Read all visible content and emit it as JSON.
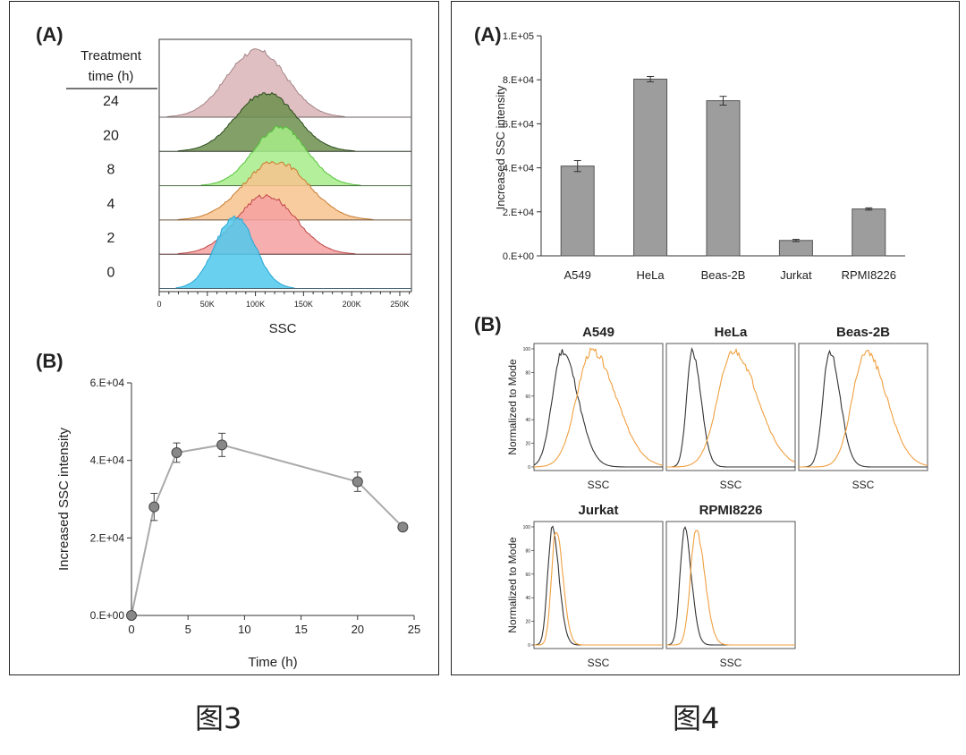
{
  "captions": {
    "fig3": "图3",
    "fig4": "图4"
  },
  "colors": {
    "hist_fills": [
      "#4fc9ec",
      "#f5a0a0",
      "#f7c38e",
      "#a7ec8a",
      "#6c8f4e",
      "#d9b4b6"
    ],
    "hist_strokes": [
      "#2aa6d6",
      "#c04545",
      "#c97a2e",
      "#55c43a",
      "#2c4a1c",
      "#a38385"
    ],
    "bar_fill": "#9d9d9d",
    "line": "#aaaaaa",
    "marker": "#888888",
    "control_curve": "#333333",
    "treated_curve": "#f0a040"
  },
  "chart_data": [
    {
      "id": "fig3-A",
      "type": "area",
      "panel_label": "(A)",
      "header_line1": "Treatment",
      "header_line2": "time (h)",
      "xlabel": "SSC",
      "xticks": [
        "0",
        "50K",
        "100K",
        "150K",
        "200K",
        "250K"
      ],
      "xlim": [
        0,
        262144
      ],
      "series": [
        {
          "name": "24",
          "peak": 100000,
          "width": 30000
        },
        {
          "name": "20",
          "peak": 110000,
          "width": 30000
        },
        {
          "name": "8",
          "peak": 125000,
          "width": 27000
        },
        {
          "name": "4",
          "peak": 120000,
          "width": 33000
        },
        {
          "name": "2",
          "peak": 110000,
          "width": 30000
        },
        {
          "name": "0",
          "peak": 78000,
          "width": 20000
        }
      ]
    },
    {
      "id": "fig3-B",
      "type": "line",
      "panel_label": "(B)",
      "xlabel": "Time (h)",
      "ylabel": "Increased SSC intensity",
      "xlim": [
        0,
        25
      ],
      "ylim": [
        0,
        60000
      ],
      "xticks": [
        "0",
        "5",
        "10",
        "15",
        "20",
        "25"
      ],
      "yticks": [
        "0.E+00",
        "2.E+04",
        "4.E+04",
        "6.E+04"
      ],
      "x": [
        0,
        2,
        4,
        8,
        20,
        24
      ],
      "y": [
        0,
        28000,
        42000,
        44000,
        34500,
        22800
      ],
      "err": [
        0,
        3500,
        2500,
        3000,
        2500,
        800
      ]
    },
    {
      "id": "fig4-A",
      "type": "bar",
      "panel_label": "(A)",
      "ylabel": "Increased SSC intensity",
      "categories": [
        "A549",
        "HeLa",
        "Beas-2B",
        "Jurkat",
        "RPMI8226"
      ],
      "values": [
        40800,
        80300,
        70500,
        7000,
        21300
      ],
      "err": [
        2500,
        1200,
        2000,
        500,
        500
      ],
      "ylim": [
        0,
        100000
      ],
      "yticks": [
        "0.E+00",
        "2.E+04",
        "4.E+04",
        "6.E+04",
        "8.E+04",
        "1.E+05"
      ]
    },
    {
      "id": "fig4-B",
      "type": "line",
      "panel_label": "(B)",
      "ylabel": "Normalized to Mode",
      "xlabel": "SSC",
      "yticks": [
        "0",
        "20",
        "40",
        "60",
        "80",
        "100"
      ],
      "ylim": [
        0,
        100
      ],
      "cells": [
        {
          "name": "A549",
          "control": {
            "peak": 0.22,
            "width": 0.09
          },
          "treated": {
            "peak": 0.45,
            "width": 0.14
          }
        },
        {
          "name": "HeLa",
          "control": {
            "peak": 0.2,
            "width": 0.05
          },
          "treated": {
            "peak": 0.52,
            "width": 0.14
          }
        },
        {
          "name": "Beas-2B",
          "control": {
            "peak": 0.24,
            "width": 0.06
          },
          "treated": {
            "peak": 0.52,
            "width": 0.12
          }
        },
        {
          "name": "Jurkat",
          "control": {
            "peak": 0.14,
            "width": 0.04
          },
          "treated": {
            "peak": 0.17,
            "width": 0.04
          }
        },
        {
          "name": "RPMI8226",
          "control": {
            "peak": 0.14,
            "width": 0.04
          },
          "treated": {
            "peak": 0.23,
            "width": 0.05
          }
        }
      ]
    }
  ]
}
